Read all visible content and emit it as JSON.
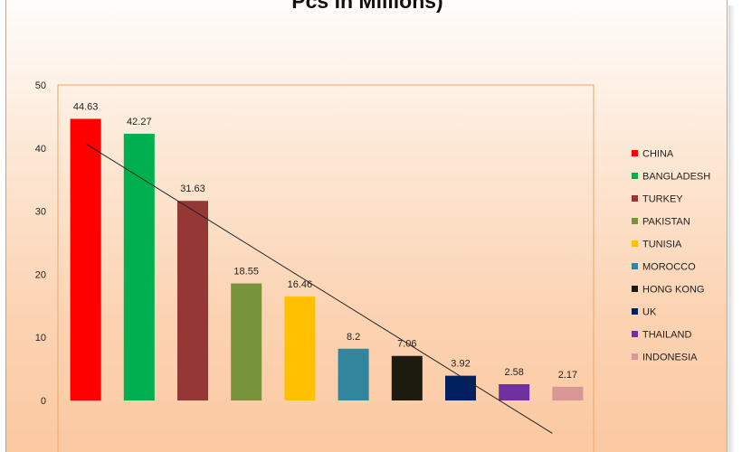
{
  "chart_data": {
    "type": "bar",
    "title": "Pcs In Millions)",
    "xlabel": "",
    "ylabel": "",
    "ylim": [
      0,
      50
    ],
    "yticks": [
      0,
      10,
      20,
      30,
      40,
      50
    ],
    "categories": [
      "CHINA",
      "BANGLADESH",
      "TURKEY",
      "PAKISTAN",
      "TUNISIA",
      "MOROCCO",
      "HONG KONG",
      "UK",
      "THAILAND",
      "INDONESIA"
    ],
    "values": [
      44.63,
      42.27,
      31.63,
      18.55,
      16.46,
      8.2,
      7.06,
      3.92,
      2.58,
      2.17
    ],
    "data_labels": [
      "44.63",
      "42.27",
      "31.63",
      "18.55",
      "16.46",
      "8.2",
      "7.06",
      "3.92",
      "2.58",
      "2.17"
    ],
    "colors": [
      "#ff0000",
      "#00b050",
      "#953735",
      "#77933c",
      "#ffc000",
      "#31859c",
      "#1d1b10",
      "#002060",
      "#7030a0",
      "#d99694"
    ],
    "trendline": {
      "type": "linear",
      "start_value": 40.7,
      "end_value": -5.2
    },
    "legend_position": "right",
    "grid": false
  }
}
